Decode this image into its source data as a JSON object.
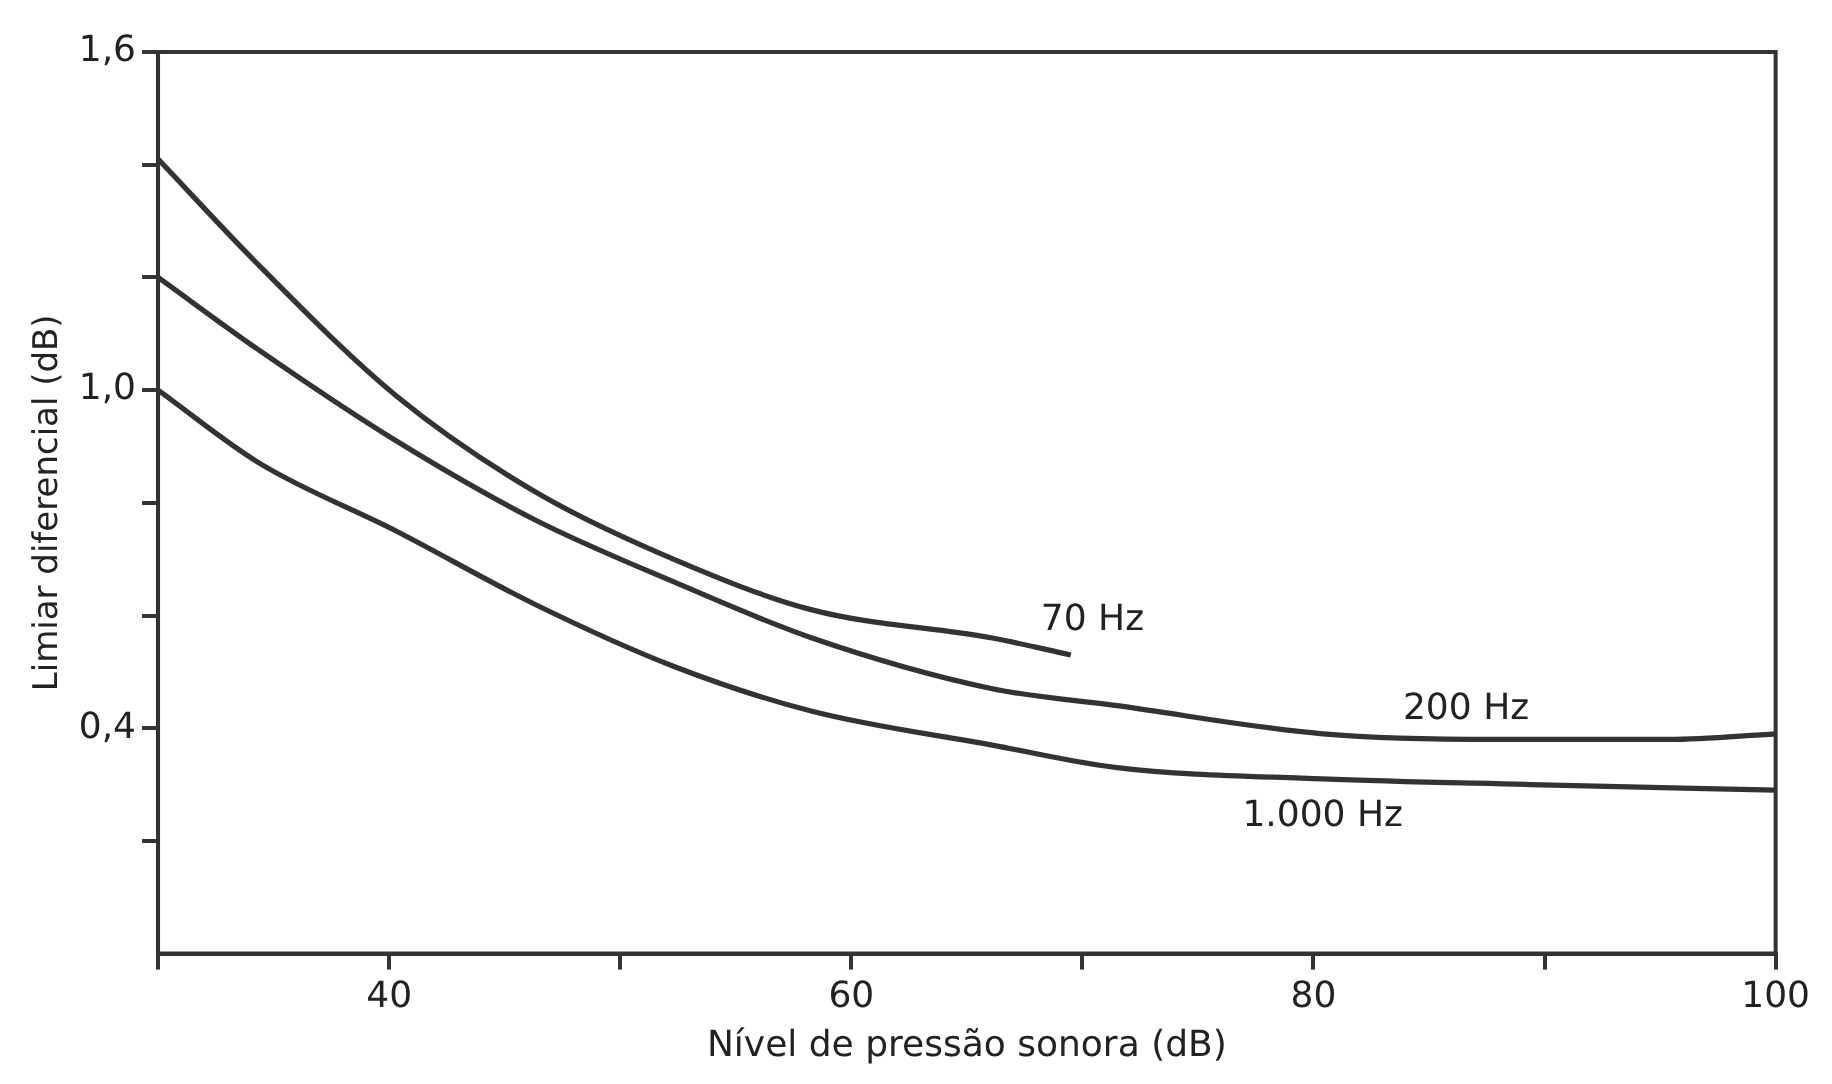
{
  "chart_data": {
    "type": "line",
    "xlabel": "Nível de pressão sonora (dB)",
    "ylabel": "Limiar diferencial (dB)",
    "xlim": [
      30,
      100
    ],
    "xticks": [
      {
        "value": 30,
        "label": null
      },
      40,
      {
        "value": 50,
        "label": null
      },
      60,
      {
        "value": 70,
        "label": null
      },
      80,
      {
        "value": 90,
        "label": null
      },
      100
    ],
    "ylim": [
      0,
      1.6
    ],
    "yticks": [
      {
        "value": 0.2,
        "label": null
      },
      {
        "value": 0.4,
        "label": "0,4"
      },
      {
        "value": 0.6,
        "label": null
      },
      {
        "value": 0.8,
        "label": null
      },
      {
        "value": 1.0,
        "label": "1,0"
      },
      {
        "value": 1.2,
        "label": null
      },
      {
        "value": 1.4,
        "label": null
      },
      {
        "value": 1.6,
        "label": "1,6"
      }
    ],
    "marker": "none",
    "line_style": "solid",
    "legend": false,
    "series": [
      {
        "name": "70 Hz",
        "color": "#333333",
        "x": [
          30,
          34.4,
          40.3,
          46.3,
          52.3,
          58.3,
          66.1,
          69.5
        ],
        "values": [
          1.41,
          1.22,
          0.99,
          0.82,
          0.7,
          0.61,
          0.56,
          0.53
        ]
      },
      {
        "name": "200 Hz",
        "color": "#333333",
        "x": [
          30,
          34.4,
          40.3,
          46.3,
          52.3,
          58.3,
          66.1,
          71.5,
          80.4,
          87.9,
          95.4,
          100
        ],
        "values": [
          1.2,
          1.07,
          0.91,
          0.77,
          0.66,
          0.56,
          0.47,
          0.44,
          0.39,
          0.38,
          0.38,
          0.39
        ]
      },
      {
        "name": "1.000 Hz",
        "color": "#333333",
        "x": [
          30,
          34.4,
          40.3,
          46.3,
          52.3,
          58.3,
          66.1,
          71.5,
          80.4,
          89.4,
          100
        ],
        "values": [
          1.0,
          0.87,
          0.75,
          0.62,
          0.51,
          0.43,
          0.37,
          0.33,
          0.31,
          0.3,
          0.29
        ]
      }
    ]
  }
}
